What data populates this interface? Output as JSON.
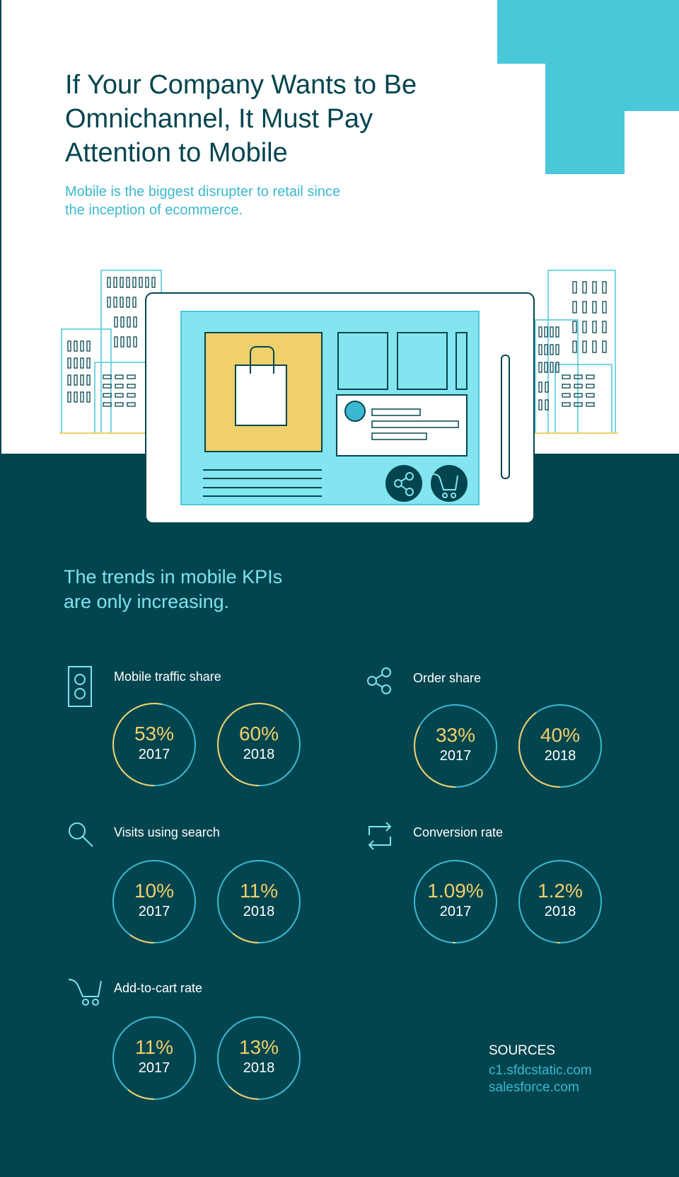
{
  "header": {
    "title_lines": [
      "If Your Company Wants to Be",
      "Omnichannel, It Must Pay",
      "Attention to Mobile"
    ],
    "subtitle_lines": [
      "Mobile is the biggest disrupter to retail since",
      "the inception of ecommerce."
    ]
  },
  "kpi_section": {
    "heading_lines": [
      "The trends in mobile KPIs",
      "are only increasing."
    ]
  },
  "kpis": [
    {
      "label": "Mobile traffic share",
      "icon": "mobile-phone-icon",
      "values": [
        {
          "pct": "53%",
          "year": "2017",
          "fraction": 0.53
        },
        {
          "pct": "60%",
          "year": "2018",
          "fraction": 0.6
        }
      ]
    },
    {
      "label": "Order share",
      "icon": "share-icon",
      "values": [
        {
          "pct": "33%",
          "year": "2017",
          "fraction": 0.33
        },
        {
          "pct": "40%",
          "year": "2018",
          "fraction": 0.4
        }
      ]
    },
    {
      "label": "Visits using search",
      "icon": "search-icon",
      "values": [
        {
          "pct": "10%",
          "year": "2017",
          "fraction": 0.1
        },
        {
          "pct": "11%",
          "year": "2018",
          "fraction": 0.11
        }
      ]
    },
    {
      "label": "Conversion rate",
      "icon": "repeat-icon",
      "values": [
        {
          "pct": "1.09%",
          "year": "2017",
          "fraction": 0.0109
        },
        {
          "pct": "1.2%",
          "year": "2018",
          "fraction": 0.012
        }
      ]
    },
    {
      "label": "Add-to-cart rate",
      "icon": "cart-icon",
      "values": [
        {
          "pct": "11%",
          "year": "2017",
          "fraction": 0.11
        },
        {
          "pct": "13%",
          "year": "2018",
          "fraction": 0.13
        }
      ]
    }
  ],
  "sources": {
    "heading": "SOURCES",
    "items": [
      "c1.sfdcstatic.com",
      "salesforce.com"
    ]
  },
  "colors": {
    "dark": "#03454f",
    "teal": "#3bb8d0",
    "yellow": "#f1cf69",
    "light": "#7de3ef"
  }
}
